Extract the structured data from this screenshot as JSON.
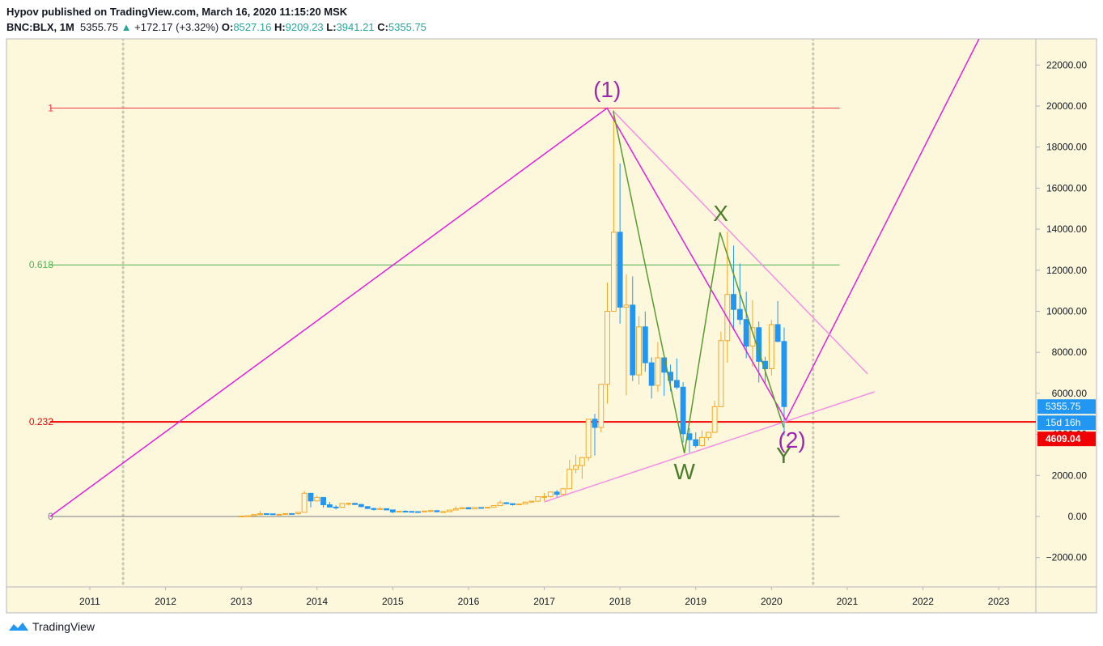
{
  "header": {
    "author_line": "Hypov published on TradingView.com, March 16, 2020 11:15:20 MSK",
    "symbol": "BNC:BLX, 1M",
    "change_arrow": "▲",
    "change": "+172.17",
    "change_pct": "(+3.32%)",
    "ohlc_labels": [
      "O:",
      "H:",
      "L:",
      "C:"
    ]
  },
  "footer": {
    "brand": "TradingView"
  },
  "chart_data": {
    "type": "candlestick",
    "xlim": [
      2009.9,
      2023.49
    ],
    "xticks": [
      2011,
      2012,
      2013,
      2014,
      2015,
      2016,
      2017,
      2018,
      2019,
      2020,
      2021,
      2022,
      2023
    ],
    "ylim": [
      -3432,
      23274
    ],
    "yticks": [
      {
        "value": -2000,
        "label": "−2000.00"
      },
      {
        "value": 0,
        "label": "0.00"
      },
      {
        "value": 2000,
        "label": "2000.00"
      },
      {
        "value": 4000,
        "label": "4000.00"
      },
      {
        "value": 6000,
        "label": "6000.00"
      },
      {
        "value": 8000,
        "label": "8000.00"
      },
      {
        "value": 10000,
        "label": "10000.00"
      },
      {
        "value": 12000,
        "label": "12000.00"
      },
      {
        "value": 14000,
        "label": "14000.00"
      },
      {
        "value": 16000,
        "label": "16000.00"
      },
      {
        "value": 18000,
        "label": "18000.00"
      },
      {
        "value": 20000,
        "label": "20000.00"
      },
      {
        "value": 22000,
        "label": "22000.00"
      }
    ],
    "up_color": "#f5a623",
    "down_color": "#2196f3",
    "candles": {
      "x": [
        2013.0,
        2013.083,
        2013.167,
        2013.25,
        2013.333,
        2013.417,
        2013.5,
        2013.583,
        2013.667,
        2013.75,
        2013.833,
        2013.917,
        2014.0,
        2014.083,
        2014.167,
        2014.25,
        2014.333,
        2014.417,
        2014.5,
        2014.583,
        2014.667,
        2014.75,
        2014.833,
        2014.917,
        2015.0,
        2015.083,
        2015.167,
        2015.25,
        2015.333,
        2015.417,
        2015.5,
        2015.583,
        2015.667,
        2015.75,
        2015.833,
        2015.917,
        2016.0,
        2016.083,
        2016.167,
        2016.25,
        2016.333,
        2016.417,
        2016.5,
        2016.583,
        2016.667,
        2016.75,
        2016.833,
        2016.917,
        2017.0,
        2017.083,
        2017.167,
        2017.25,
        2017.333,
        2017.417,
        2017.5,
        2017.583,
        2017.667,
        2017.75,
        2017.833,
        2017.917,
        2018.0,
        2018.083,
        2018.167,
        2018.25,
        2018.333,
        2018.417,
        2018.5,
        2018.583,
        2018.667,
        2018.75,
        2018.833,
        2018.917,
        2019.0,
        2019.083,
        2019.167,
        2019.25,
        2019.333,
        2019.417,
        2019.5,
        2019.583,
        2019.667,
        2019.75,
        2019.833,
        2019.917,
        2020.0,
        2020.083,
        2020.167
      ],
      "open": [
        13.3,
        20.4,
        33.4,
        93,
        139,
        128,
        97,
        106,
        141,
        138,
        205,
        1130,
        757,
        930,
        570,
        457,
        448,
        630,
        640,
        585,
        480,
        390,
        340,
        380,
        320,
        220,
        255,
        245,
        235,
        230,
        265,
        285,
        230,
        237,
        315,
        377,
        430,
        370,
        437,
        416,
        448,
        530,
        670,
        625,
        575,
        608,
        700,
        745,
        965,
        970,
        1190,
        1080,
        1350,
        2300,
        2480,
        2870,
        4740,
        4340,
        6440,
        10000,
        13850,
        10200,
        10300,
        6900,
        9240,
        7490,
        6390,
        7730,
        7030,
        6630,
        6300,
        4030,
        3740,
        3450,
        3850,
        4100,
        5350,
        8570,
        10820,
        10090,
        9600,
        8300,
        9200,
        7560,
        7200,
        9350,
        8527.16
      ],
      "high": [
        20.4,
        33.4,
        95,
        266,
        140,
        129,
        110,
        141,
        145,
        210,
        1240,
        1150,
        1020,
        935,
        710,
        545,
        640,
        680,
        650,
        600,
        500,
        420,
        460,
        390,
        320,
        270,
        300,
        260,
        250,
        270,
        320,
        290,
        240,
        330,
        500,
        470,
        460,
        450,
        440,
        470,
        550,
        780,
        700,
        630,
        620,
        720,
        750,
        980,
        1150,
        1210,
        1290,
        1350,
        2760,
        3000,
        2900,
        4740,
        5000,
        6450,
        11400,
        19800,
        17200,
        11800,
        11700,
        9760,
        9990,
        7750,
        8500,
        7750,
        7400,
        7700,
        6540,
        4300,
        4100,
        4200,
        4120,
        5640,
        9000,
        13880,
        13200,
        12330,
        10950,
        10540,
        9500,
        7780,
        9580,
        10500,
        9209.23
      ],
      "low": [
        12.9,
        19.6,
        33,
        50,
        79,
        88,
        65,
        102,
        122,
        100,
        205,
        440,
        750,
        430,
        440,
        340,
        420,
        540,
        560,
        450,
        360,
        290,
        330,
        300,
        160,
        210,
        240,
        210,
        225,
        220,
        260,
        200,
        220,
        236,
        300,
        350,
        360,
        370,
        400,
        414,
        440,
        530,
        600,
        530,
        570,
        600,
        690,
        740,
        750,
        920,
        890,
        1060,
        1350,
        2100,
        1830,
        2700,
        2970,
        4100,
        5500,
        10000,
        9400,
        5900,
        6600,
        6430,
        7050,
        5750,
        6070,
        5880,
        6100,
        6200,
        3600,
        3120,
        3350,
        3400,
        3700,
        4080,
        5350,
        7500,
        9070,
        9350,
        7710,
        7300,
        6530,
        6430,
        6870,
        8500,
        3941.21
      ],
      "close": [
        20.4,
        33.4,
        93,
        139,
        128,
        97,
        106,
        141,
        138,
        205,
        1130,
        757,
        930,
        570,
        457,
        448,
        630,
        640,
        585,
        480,
        390,
        340,
        380,
        320,
        220,
        255,
        245,
        235,
        230,
        265,
        285,
        230,
        237,
        315,
        377,
        430,
        370,
        437,
        416,
        448,
        530,
        670,
        625,
        575,
        608,
        700,
        745,
        965,
        970,
        1190,
        1080,
        1350,
        2300,
        2480,
        2870,
        4740,
        4340,
        6440,
        10000,
        13850,
        10200,
        10300,
        6900,
        9240,
        7490,
        6390,
        7730,
        7030,
        6630,
        6300,
        4030,
        3740,
        3450,
        3850,
        4100,
        5350,
        8570,
        10820,
        10090,
        9600,
        8300,
        9200,
        7560,
        7200,
        9350,
        8530,
        5355.75
      ]
    },
    "countdown": "15d 16h",
    "fib": {
      "levels": [
        1,
        0.618,
        0.232,
        0
      ],
      "prices": [
        19900,
        12260,
        4609.04,
        0
      ],
      "colors": [
        "#f23645",
        "#4caf50",
        "#f00000",
        "#787b86"
      ],
      "start": 2010.476,
      "end": 2020.9
    },
    "drawings": [
      {
        "color": "#e020e0",
        "points": [
          [
            2010.476,
            0
          ],
          [
            2017.83,
            19900
          ],
          [
            2020.19,
            4694
          ],
          [
            2022.74,
            23274
          ]
        ]
      },
      {
        "color": "#f48fe6",
        "points": [
          [
            2017.91,
            19760
          ],
          [
            2021.27,
            6943
          ]
        ]
      },
      {
        "color": "#f48fe6",
        "points": [
          [
            2017.0,
            710
          ],
          [
            2021.36,
            6075
          ]
        ]
      },
      {
        "color": "#5b9a30",
        "points": [
          [
            2017.91,
            19760
          ],
          [
            2018.85,
            3077
          ],
          [
            2019.32,
            13846
          ],
          [
            2020.16,
            4339
          ]
        ]
      }
    ],
    "vlines": [
      2011.44,
      2020.55
    ],
    "annotations": [
      {
        "text": "(1)",
        "x": 2017.83,
        "y": 20830,
        "color": "#9c27b0"
      },
      {
        "text": "X",
        "x": 2019.33,
        "y": 14790,
        "color": "#4a7c2a"
      },
      {
        "text": "W",
        "x": 2018.85,
        "y": 2210,
        "color": "#4a7c2a"
      },
      {
        "text": "Y",
        "x": 2020.16,
        "y": 3000,
        "color": "#4a7c2a"
      },
      {
        "text": "(2)",
        "x": 2020.27,
        "y": 3750,
        "color": "#9c27b0"
      }
    ]
  }
}
